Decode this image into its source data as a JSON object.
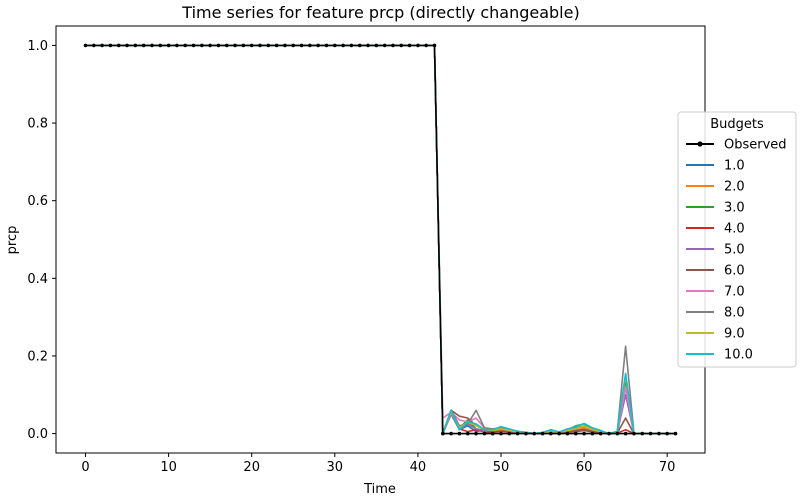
{
  "chart_data": {
    "type": "line",
    "title": "Time series for feature prcp (directly changeable)",
    "xlabel": "Time",
    "ylabel": "prcp",
    "xlim": [
      -3.55,
      74.55
    ],
    "ylim": [
      -0.05,
      1.05
    ],
    "xticks": [
      0,
      10,
      20,
      30,
      40,
      50,
      60,
      70
    ],
    "yticks": [
      0.0,
      0.2,
      0.4,
      0.6,
      0.8,
      1.0
    ],
    "xtick_labels": [
      "0",
      "10",
      "20",
      "30",
      "40",
      "50",
      "60",
      "70"
    ],
    "ytick_labels": [
      "0.0",
      "0.2",
      "0.4",
      "0.6",
      "0.8",
      "1.0"
    ],
    "grid": false,
    "legend": {
      "title": "Budgets",
      "placement": "right"
    },
    "observed": {
      "name": "Observed",
      "color": "#000000",
      "x": [
        0,
        1,
        2,
        3,
        4,
        5,
        6,
        7,
        8,
        9,
        10,
        11,
        12,
        13,
        14,
        15,
        16,
        17,
        18,
        19,
        20,
        21,
        22,
        23,
        24,
        25,
        26,
        27,
        28,
        29,
        30,
        31,
        32,
        33,
        34,
        35,
        36,
        37,
        38,
        39,
        40,
        41,
        42,
        43,
        44,
        45,
        46,
        47,
        48,
        49,
        50,
        51,
        52,
        53,
        54,
        55,
        56,
        57,
        58,
        59,
        60,
        61,
        62,
        63,
        64,
        65,
        66,
        67,
        68,
        69,
        70,
        71
      ],
      "y": [
        1,
        1,
        1,
        1,
        1,
        1,
        1,
        1,
        1,
        1,
        1,
        1,
        1,
        1,
        1,
        1,
        1,
        1,
        1,
        1,
        1,
        1,
        1,
        1,
        1,
        1,
        1,
        1,
        1,
        1,
        1,
        1,
        1,
        1,
        1,
        1,
        1,
        1,
        1,
        1,
        1,
        1,
        1,
        0,
        0,
        0,
        0,
        0,
        0,
        0,
        0,
        0,
        0,
        0,
        0,
        0,
        0,
        0,
        0,
        0,
        0,
        0,
        0,
        0,
        0,
        0,
        0,
        0,
        0,
        0,
        0,
        0
      ]
    },
    "tail_x": [
      42,
      43,
      44,
      45,
      46,
      47,
      48,
      49,
      50,
      51,
      52,
      53,
      54,
      55,
      56,
      57,
      58,
      59,
      60,
      61,
      62,
      63,
      64,
      65,
      66,
      67,
      68,
      69,
      70,
      71
    ],
    "series": [
      {
        "name": "1.0",
        "color": "#1f77b4",
        "y": [
          1.0,
          0.0,
          0.055,
          0.01,
          0.02,
          0.005,
          0.01,
          0.005,
          0.008,
          0.004,
          0.002,
          0.001,
          0.0,
          0.001,
          0.003,
          0.001,
          0.005,
          0.008,
          0.012,
          0.006,
          0.004,
          0.0,
          0.002,
          0.12,
          0.0,
          0.0,
          0.0,
          0.0,
          0.0,
          0.0
        ]
      },
      {
        "name": "2.0",
        "color": "#ff7f0e",
        "y": [
          1.0,
          0.0,
          0.06,
          0.01,
          0.03,
          0.01,
          0.005,
          0.004,
          0.01,
          0.006,
          0.003,
          0.002,
          0.0,
          0.001,
          0.004,
          0.002,
          0.006,
          0.01,
          0.015,
          0.008,
          0.003,
          0.0,
          0.003,
          0.13,
          0.0,
          0.0,
          0.0,
          0.0,
          0.0,
          0.0
        ]
      },
      {
        "name": "3.0",
        "color": "#2ca02c",
        "y": [
          1.0,
          0.0,
          0.06,
          0.015,
          0.035,
          0.012,
          0.008,
          0.006,
          0.012,
          0.008,
          0.004,
          0.002,
          0.0,
          0.002,
          0.005,
          0.003,
          0.01,
          0.02,
          0.025,
          0.012,
          0.006,
          0.0,
          0.004,
          0.14,
          0.0,
          0.0,
          0.0,
          0.0,
          0.0,
          0.0
        ]
      },
      {
        "name": "4.0",
        "color": "#d62728",
        "y": [
          1.0,
          0.0,
          0.05,
          0.012,
          0.005,
          0.01,
          0.004,
          0.003,
          0.006,
          0.004,
          0.002,
          0.001,
          0.0,
          0.001,
          0.002,
          0.001,
          0.004,
          0.005,
          0.008,
          0.004,
          0.002,
          0.0,
          0.001,
          0.01,
          0.0,
          0.0,
          0.0,
          0.0,
          0.0,
          0.0
        ]
      },
      {
        "name": "5.0",
        "color": "#9467bd",
        "y": [
          1.0,
          0.0,
          0.05,
          0.01,
          0.025,
          0.012,
          0.006,
          0.01,
          0.012,
          0.006,
          0.003,
          0.002,
          0.0,
          0.001,
          0.004,
          0.002,
          0.006,
          0.008,
          0.01,
          0.006,
          0.004,
          0.0,
          0.003,
          0.1,
          0.0,
          0.0,
          0.0,
          0.0,
          0.0,
          0.0
        ]
      },
      {
        "name": "6.0",
        "color": "#8c564b",
        "y": [
          1.0,
          0.0,
          0.06,
          0.045,
          0.04,
          0.02,
          0.01,
          0.008,
          0.012,
          0.008,
          0.004,
          0.002,
          0.0,
          0.001,
          0.005,
          0.002,
          0.006,
          0.008,
          0.01,
          0.006,
          0.004,
          0.0,
          0.002,
          0.04,
          0.0,
          0.0,
          0.0,
          0.0,
          0.0,
          0.0
        ]
      },
      {
        "name": "7.0",
        "color": "#e377c2",
        "y": [
          1.0,
          0.04,
          0.055,
          0.035,
          0.03,
          0.04,
          0.015,
          0.01,
          0.015,
          0.01,
          0.005,
          0.003,
          0.0,
          0.002,
          0.006,
          0.003,
          0.008,
          0.012,
          0.018,
          0.01,
          0.005,
          0.0,
          0.004,
          0.12,
          0.0,
          0.0,
          0.0,
          0.0,
          0.0,
          0.0
        ]
      },
      {
        "name": "8.0",
        "color": "#7f7f7f",
        "y": [
          1.0,
          0.0,
          0.06,
          0.02,
          0.025,
          0.06,
          0.015,
          0.012,
          0.015,
          0.01,
          0.006,
          0.003,
          0.0,
          0.002,
          0.006,
          0.003,
          0.01,
          0.015,
          0.02,
          0.012,
          0.006,
          0.0,
          0.005,
          0.225,
          0.0,
          0.0,
          0.0,
          0.0,
          0.0,
          0.0
        ]
      },
      {
        "name": "9.0",
        "color": "#bcbd22",
        "y": [
          1.0,
          0.0,
          0.055,
          0.015,
          0.03,
          0.02,
          0.01,
          0.008,
          0.012,
          0.008,
          0.004,
          0.002,
          0.0,
          0.002,
          0.005,
          0.003,
          0.008,
          0.012,
          0.02,
          0.01,
          0.005,
          0.0,
          0.004,
          0.15,
          0.0,
          0.0,
          0.0,
          0.0,
          0.0,
          0.0
        ]
      },
      {
        "name": "10.0",
        "color": "#17becf",
        "y": [
          1.0,
          0.0,
          0.06,
          0.01,
          0.03,
          0.025,
          0.01,
          0.01,
          0.018,
          0.012,
          0.006,
          0.003,
          0.0,
          0.003,
          0.01,
          0.004,
          0.012,
          0.018,
          0.026,
          0.015,
          0.008,
          0.0,
          0.006,
          0.155,
          0.0,
          0.0,
          0.0,
          0.0,
          0.0,
          0.0
        ]
      }
    ]
  }
}
